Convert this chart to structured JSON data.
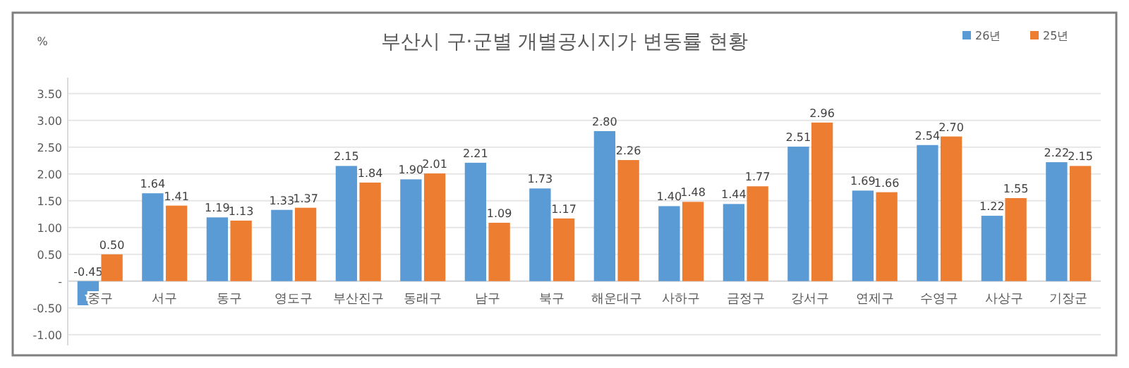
{
  "chart_data": {
    "type": "bar",
    "title": "부산시 구·군별 개별공시지가 변동률 현황",
    "ylabel": "%",
    "categories": [
      "중구",
      "서구",
      "동구",
      "영도구",
      "부산진구",
      "동래구",
      "남구",
      "북구",
      "해운대구",
      "사하구",
      "금정구",
      "강서구",
      "연제구",
      "수영구",
      "사상구",
      "기장군"
    ],
    "series": [
      {
        "name": "26년",
        "color": "#5b9bd5",
        "values": [
          -0.45,
          1.64,
          1.19,
          1.33,
          2.15,
          1.9,
          2.21,
          1.73,
          2.8,
          1.4,
          1.44,
          2.51,
          1.69,
          2.54,
          1.22,
          2.22
        ],
        "value_labels": [
          "-0.45",
          "1.64",
          "1.19",
          "1.33",
          "2.15",
          "1.90",
          "2.21",
          "1.73",
          "2.80",
          "1.40",
          "1.44",
          "2.51",
          "1.69",
          "2.54",
          "1.22",
          "2.22"
        ]
      },
      {
        "name": "25년",
        "color": "#ed7d31",
        "values": [
          0.5,
          1.41,
          1.13,
          1.37,
          1.84,
          2.01,
          1.09,
          1.17,
          2.26,
          1.48,
          1.77,
          2.96,
          1.66,
          2.7,
          1.55,
          2.15
        ],
        "value_labels": [
          "0.50",
          "1.41",
          "1.13",
          "1.37",
          "1.84",
          "2.01",
          "1.09",
          "1.17",
          "2.26",
          "1.48",
          "1.77",
          "2.96",
          "1.66",
          "2.70",
          "1.55",
          "2.15"
        ]
      }
    ],
    "ylim": [
      -1.2,
      3.8
    ],
    "yticks": [
      {
        "value": -1,
        "label": "-1.00"
      },
      {
        "value": -0.5,
        "label": "-0.50"
      },
      {
        "value": 0,
        "label": "-"
      },
      {
        "value": 0.5,
        "label": "0.50"
      },
      {
        "value": 1,
        "label": "1.00"
      },
      {
        "value": 1.5,
        "label": "1.50"
      },
      {
        "value": 2,
        "label": "2.00"
      },
      {
        "value": 2.5,
        "label": "2.50"
      },
      {
        "value": 3,
        "label": "3.00"
      },
      {
        "value": 3.5,
        "label": "3.50"
      }
    ],
    "grid": "y",
    "legend": "top right"
  }
}
